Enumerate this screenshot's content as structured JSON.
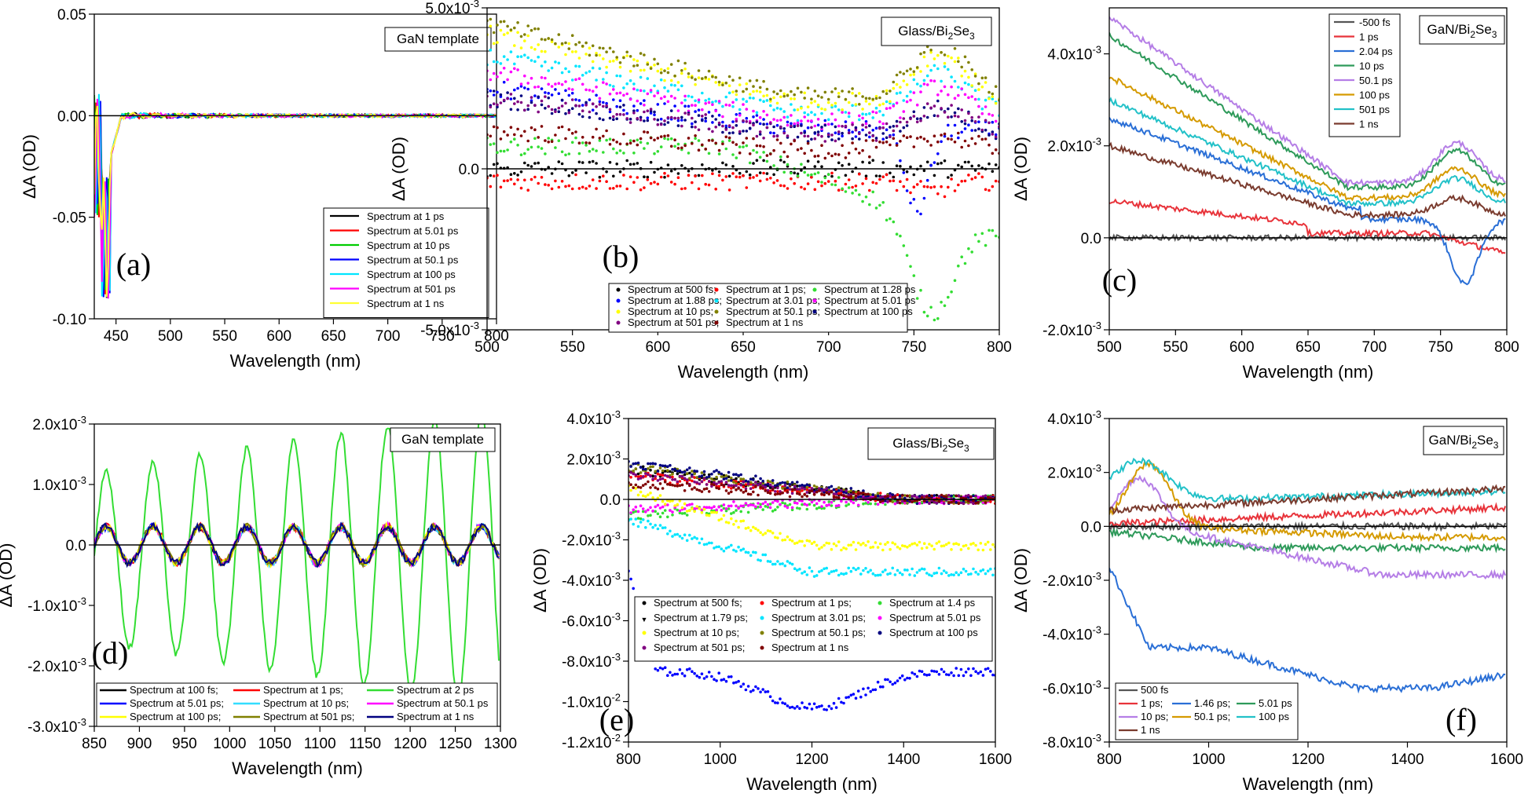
{
  "chart_data": [
    {
      "panel": "(a)",
      "type": "line",
      "label_box": "GaN template",
      "xlabel": "Wavelength (nm)",
      "ylabel": "ΔA (OD)",
      "xlim": [
        430,
        800
      ],
      "ylim": [
        -0.1,
        0.05
      ],
      "xticks": [
        450,
        500,
        550,
        600,
        650,
        700,
        750,
        800
      ],
      "yticks": [
        -0.1,
        -0.05,
        0,
        0.05
      ],
      "ytick_labels": [
        "-0.10",
        "-0.05",
        "0.00",
        "0.05"
      ],
      "legend": "bottom-right",
      "series": [
        {
          "name": "Spectrum at 1 ps",
          "color": "#000000"
        },
        {
          "name": "Spectrum at 5.01 ps",
          "color": "#ff0000"
        },
        {
          "name": "Spectrum at 10 ps",
          "color": "#00cc00"
        },
        {
          "name": "Spectrum at 50.1 ps",
          "color": "#0000ff"
        },
        {
          "name": "Spectrum at 100 ps",
          "color": "#00e5ff"
        },
        {
          "name": "Spectrum at 501 ps",
          "color": "#ff00ff"
        },
        {
          "name": "Spectrum at 1 ns",
          "color": "#ffff33"
        }
      ]
    },
    {
      "panel": "(b)",
      "type": "scatter",
      "label_box": "Glass/Bi2Se3",
      "xlabel": "Wavelength (nm)",
      "ylabel": "ΔA (OD)",
      "xlim": [
        500,
        800
      ],
      "ylim": [
        -0.005,
        0.005
      ],
      "xticks": [
        500,
        550,
        600,
        650,
        700,
        750,
        800
      ],
      "yticks": [
        -0.005,
        0,
        0.005
      ],
      "ytick_labels": [
        "-5.0x10-3",
        "0.0",
        "5.0x10-3"
      ],
      "legend": "bottom-left",
      "series": [
        {
          "name": "Spectrum at 500 fs;",
          "color": "#000000"
        },
        {
          "name": "Spectrum at 1 ps;",
          "color": "#ff0000"
        },
        {
          "name": "Spectrum at 1.28 ps",
          "color": "#33dd33"
        },
        {
          "name": "Spectrum at 1.88 ps;",
          "color": "#0000ff"
        },
        {
          "name": "Spectrum at 3.01 ps;",
          "color": "#00e5ff"
        },
        {
          "name": "Spectrum at 5.01 ps",
          "color": "#ff00ff"
        },
        {
          "name": "Spectrum at 10 ps;",
          "color": "#ffff00"
        },
        {
          "name": "Spectrum at 50.1 ps;",
          "color": "#808000"
        },
        {
          "name": "Spectrum at 100 ps",
          "color": "#000080"
        },
        {
          "name": "Spectrum at 501 ps;",
          "color": "#800080"
        },
        {
          "name": "Spectrum at 1 ns",
          "color": "#800000"
        }
      ]
    },
    {
      "panel": "(c)",
      "type": "line",
      "label_box": "GaN/Bi2Se3",
      "xlabel": "Wavelength (nm)",
      "ylabel": "ΔA (OD)",
      "xlim": [
        500,
        800
      ],
      "ylim": [
        -0.002,
        0.005
      ],
      "xticks": [
        500,
        550,
        600,
        650,
        700,
        750,
        800
      ],
      "yticks": [
        -0.002,
        0,
        0.002,
        0.004
      ],
      "ytick_labels": [
        "-2.0x10-3",
        "0.0",
        "2.0x10-3",
        "4.0x10-3"
      ],
      "legend": "top-right",
      "series": [
        {
          "name": "-500 fs",
          "color": "#555555"
        },
        {
          "name": "1 ps",
          "color": "#e8333a"
        },
        {
          "name": "2.04 ps",
          "color": "#2a6fd6"
        },
        {
          "name": "10 ps",
          "color": "#2e9a5a"
        },
        {
          "name": "50.1 ps",
          "color": "#b57ee6"
        },
        {
          "name": "100 ps",
          "color": "#d59a00"
        },
        {
          "name": "501 ps",
          "color": "#22c1c8"
        },
        {
          "name": "1 ns",
          "color": "#7a3b2e"
        }
      ]
    },
    {
      "panel": "(d)",
      "type": "line",
      "label_box": "GaN template",
      "xlabel": "Wavelength (nm)",
      "ylabel": "ΔA (OD)",
      "xlim": [
        850,
        1300
      ],
      "ylim": [
        -0.003,
        0.002
      ],
      "xticks": [
        850,
        900,
        950,
        1000,
        1050,
        1100,
        1150,
        1200,
        1250,
        1300
      ],
      "yticks": [
        -0.003,
        -0.002,
        -0.001,
        0,
        0.001,
        0.002
      ],
      "ytick_labels": [
        "-3.0x10-3",
        "-2.0x10-3",
        "-1.0x10-3",
        "0.0",
        "1.0x10-3",
        "2.0x10-3"
      ],
      "legend": "bottom",
      "series": [
        {
          "name": "Spectrum at 100 fs;",
          "color": "#000000"
        },
        {
          "name": "Spectrum at 1 ps;",
          "color": "#ff0000"
        },
        {
          "name": "Spectrum at 2 ps",
          "color": "#33dd33"
        },
        {
          "name": "Spectrum at 5.01 ps;",
          "color": "#0000ff"
        },
        {
          "name": "Spectrum at 10 ps;",
          "color": "#33ddff"
        },
        {
          "name": "Spectrum at 50.1 ps",
          "color": "#ff00ff"
        },
        {
          "name": "Spectrum at 100 ps;",
          "color": "#ffff00"
        },
        {
          "name": "Spectrum at 501 ps;",
          "color": "#808000"
        },
        {
          "name": "Spectrum at 1 ns",
          "color": "#000080"
        }
      ]
    },
    {
      "panel": "(e)",
      "type": "scatter",
      "label_box": "Glass/Bi2Se3",
      "xlabel": "Wavelength (nm)",
      "ylabel": "ΔA (OD)",
      "xlim": [
        800,
        1600
      ],
      "ylim": [
        -0.012,
        0.004
      ],
      "xticks": [
        800,
        1000,
        1200,
        1400,
        1600
      ],
      "yticks": [
        -0.012,
        -0.01,
        -0.008,
        -0.006,
        -0.004,
        -0.002,
        0,
        0.002,
        0.004
      ],
      "ytick_labels": [
        "-1.2x10-2",
        "-1.0x10-2",
        "-8.0x10-3",
        "-6.0x10-3",
        "-4.0x10-3",
        "-2.0x10-3",
        "0.0",
        "2.0x10-3",
        "4.0x10-3"
      ],
      "legend": "middle-right",
      "series": [
        {
          "name": "Spectrum at 500 fs;",
          "color": "#000000"
        },
        {
          "name": "Spectrum at 1 ps;",
          "color": "#ff0000"
        },
        {
          "name": "Spectrum at 1.4 ps",
          "color": "#33dd33"
        },
        {
          "name": "Spectrum at 1.79 ps;",
          "color": "#0000ff"
        },
        {
          "name": "Spectrum at 3.01 ps;",
          "color": "#00e5ff"
        },
        {
          "name": "Spectrum at 5.01 ps",
          "color": "#ff00ff"
        },
        {
          "name": "Spectrum at 10 ps;",
          "color": "#ffff00"
        },
        {
          "name": "Spectrum at 50.1 ps;",
          "color": "#808000"
        },
        {
          "name": "Spectrum at 100 ps",
          "color": "#000080"
        },
        {
          "name": "Spectrum at 501 ps;",
          "color": "#800080"
        },
        {
          "name": "Spectrum at 1 ns",
          "color": "#800000"
        }
      ]
    },
    {
      "panel": "(f)",
      "type": "line",
      "label_box": "GaN/Bi2Se3",
      "xlabel": "Wavelength (nm)",
      "ylabel": "ΔA (OD)",
      "xlim": [
        800,
        1600
      ],
      "ylim": [
        -0.008,
        0.004
      ],
      "xticks": [
        800,
        1000,
        1200,
        1400,
        1600
      ],
      "yticks": [
        -0.008,
        -0.006,
        -0.004,
        -0.002,
        0,
        0.002,
        0.004
      ],
      "ytick_labels": [
        "-8.0x10-3",
        "-6.0x10-3",
        "-4.0x10-3",
        "-2.0x10-3",
        "0.0",
        "2.0x10-3",
        "4.0x10-3"
      ],
      "legend": "bottom-left",
      "series": [
        {
          "name": "500 fs",
          "color": "#555555"
        },
        {
          "name": "1 ps;",
          "color": "#e8333a"
        },
        {
          "name": "1.46 ps;",
          "color": "#2a6fd6"
        },
        {
          "name": "5.01 ps",
          "color": "#2e9a5a"
        },
        {
          "name": "10 ps;",
          "color": "#b57ee6"
        },
        {
          "name": "50.1 ps;",
          "color": "#d59a00"
        },
        {
          "name": "100 ps",
          "color": "#22c1c8"
        },
        {
          "name": "1 ns",
          "color": "#7a3b2e"
        }
      ]
    }
  ]
}
